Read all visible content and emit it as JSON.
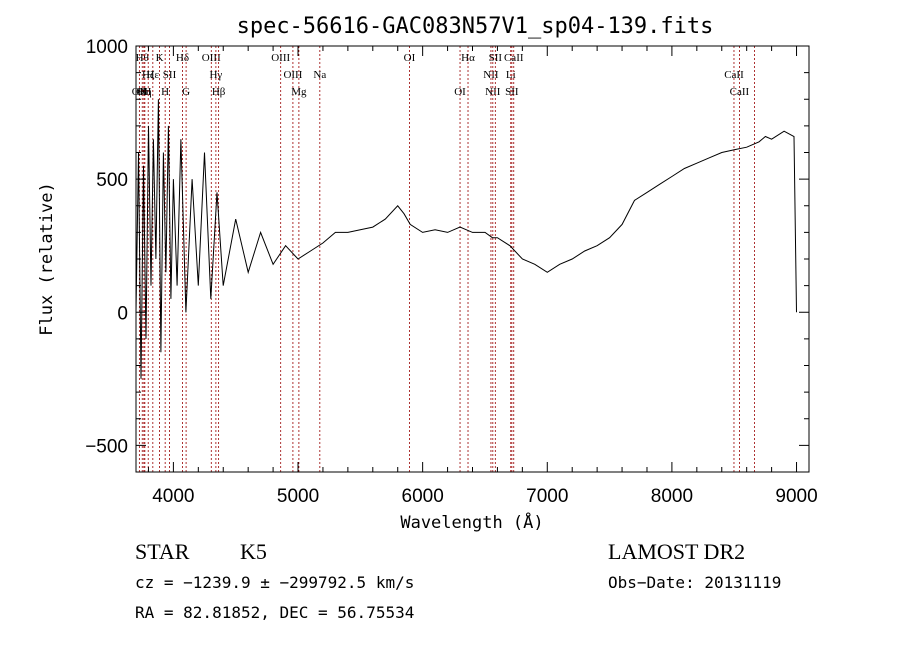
{
  "chart_data": {
    "type": "line",
    "title": "spec-56616-GAC083N57V1_sp04-139.fits",
    "xlabel": "Wavelength (Å)",
    "ylabel": "Flux (relative)",
    "xlim": [
      3700,
      9100
    ],
    "ylim": [
      -600,
      1000
    ],
    "xticks": [
      4000,
      5000,
      6000,
      7000,
      8000,
      9000
    ],
    "yticks": [
      -500,
      0,
      500,
      1000
    ],
    "series": [
      {
        "name": "",
        "x": [
          3700,
          3720,
          3740,
          3760,
          3780,
          3800,
          3820,
          3840,
          3860,
          3880,
          3900,
          3920,
          3940,
          3960,
          3980,
          4000,
          4030,
          4060,
          4100,
          4150,
          4200,
          4250,
          4300,
          4350,
          4400,
          4500,
          4600,
          4700,
          4800,
          4900,
          5000,
          5100,
          5200,
          5300,
          5400,
          5500,
          5600,
          5700,
          5800,
          5850,
          5900,
          6000,
          6100,
          6200,
          6300,
          6400,
          6500,
          6560,
          6600,
          6700,
          6800,
          6900,
          7000,
          7100,
          7200,
          7300,
          7400,
          7500,
          7600,
          7700,
          7800,
          7900,
          8000,
          8100,
          8200,
          8300,
          8400,
          8500,
          8600,
          8700,
          8750,
          8800,
          8900,
          8980,
          9000
        ],
        "y": [
          0,
          600,
          -250,
          550,
          -100,
          700,
          100,
          650,
          200,
          800,
          -150,
          600,
          150,
          700,
          50,
          500,
          100,
          650,
          0,
          500,
          100,
          600,
          50,
          450,
          100,
          350,
          150,
          300,
          180,
          250,
          200,
          230,
          260,
          300,
          300,
          310,
          320,
          350,
          400,
          370,
          330,
          300,
          310,
          300,
          320,
          300,
          300,
          280,
          280,
          250,
          200,
          180,
          150,
          180,
          200,
          230,
          250,
          280,
          330,
          420,
          450,
          480,
          510,
          540,
          560,
          580,
          600,
          610,
          620,
          640,
          660,
          650,
          680,
          660,
          0
        ]
      }
    ],
    "grid": false,
    "line_color": "#000000",
    "marker_color": "#990000",
    "line_markers": [
      {
        "label": "OII",
        "x": 3727,
        "row": 3
      },
      {
        "label": "Hθ",
        "x": 3750,
        "row": 1
      },
      {
        "label": "OII",
        "x": 3763,
        "row": 3
      },
      {
        "label": "Hη",
        "x": 3771,
        "row": 3
      },
      {
        "label": "Hζ",
        "x": 3798,
        "row": 2
      },
      {
        "label": "Hε",
        "x": 3835,
        "row": 2
      },
      {
        "label": "K",
        "x": 3889,
        "row": 1
      },
      {
        "label": "H",
        "x": 3934,
        "row": 3
      },
      {
        "label": "SII",
        "x": 3969,
        "row": 2
      },
      {
        "label": "Hδ",
        "x": 4073,
        "row": 1
      },
      {
        "label": "G",
        "x": 4102,
        "row": 3
      },
      {
        "label": "OIII",
        "x": 4304,
        "row": 1
      },
      {
        "label": "Hγ",
        "x": 4341,
        "row": 2
      },
      {
        "label": "Hβ",
        "x": 4363,
        "row": 3
      },
      {
        "label": "OIII",
        "x": 4861,
        "row": 1
      },
      {
        "label": "OIII",
        "x": 4959,
        "row": 2
      },
      {
        "label": "Mg",
        "x": 5007,
        "row": 3
      },
      {
        "label": "Na",
        "x": 5175,
        "row": 2
      },
      {
        "label": "OI",
        "x": 5894,
        "row": 1
      },
      {
        "label": "OI",
        "x": 6300,
        "row": 3
      },
      {
        "label": "Hα",
        "x": 6364,
        "row": 1
      },
      {
        "label": "NII",
        "x": 6548,
        "row": 2
      },
      {
        "label": "NII",
        "x": 6563,
        "row": 3
      },
      {
        "label": "SII",
        "x": 6583,
        "row": 1
      },
      {
        "label": "Li",
        "x": 6707,
        "row": 2
      },
      {
        "label": "SII",
        "x": 6716,
        "row": 3
      },
      {
        "label": "CaII",
        "x": 6731,
        "row": 1
      },
      {
        "label": "CaII",
        "x": 8498,
        "row": 2
      },
      {
        "label": "CaII",
        "x": 8542,
        "row": 3
      },
      {
        "label": "",
        "x": 8662,
        "row": 0
      }
    ]
  },
  "info": {
    "class": "STAR",
    "subclass": "K5",
    "survey": "LAMOST DR2",
    "cz_line": "cz = −1239.9 ± −299792.5 km/s",
    "obs_date": "Obs−Date: 20131119",
    "coords": "RA =  82.81852, DEC =  56.75534"
  }
}
